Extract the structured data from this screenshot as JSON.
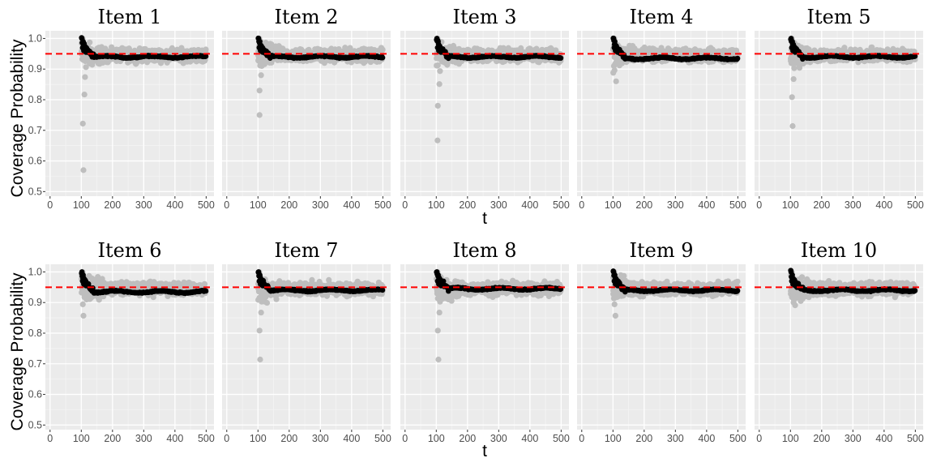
{
  "chart_data": {
    "type": "scatter",
    "layout": "facet-grid",
    "rows": 2,
    "cols": 5,
    "xlabel": "t",
    "ylabel": "Coverage Probability",
    "xlim": [
      -15,
      525
    ],
    "ylim": [
      0.485,
      1.025
    ],
    "x_ticks": [
      0,
      100,
      200,
      300,
      400,
      500
    ],
    "y_ticks": [
      0.5,
      0.6,
      0.7,
      0.8,
      0.9,
      1.0
    ],
    "y_tick_labels": [
      "0.5",
      "0.6",
      "0.7",
      "0.8",
      "0.9",
      "1.0"
    ],
    "reference_line": {
      "y": 0.95,
      "color": "#ff0000",
      "style": "dashed"
    },
    "grid": true,
    "panel_background": "#ebebeb",
    "series_colors": {
      "replicates": "#bebebe",
      "average": "#000000"
    },
    "panels": [
      {
        "title": "Item 1",
        "avg_start": 1.0,
        "avg_end": 0.94,
        "min_point": 0.57,
        "min_point_x": 107
      },
      {
        "title": "Item 2",
        "avg_start": 1.0,
        "avg_end": 0.94,
        "min_point": 0.75,
        "min_point_x": 105
      },
      {
        "title": "Item 3",
        "avg_start": 1.0,
        "avg_end": 0.94,
        "min_point": 0.667,
        "min_point_x": 104
      },
      {
        "title": "Item 4",
        "avg_start": 1.0,
        "avg_end": 0.935,
        "min_point": 0.86,
        "min_point_x": 110
      },
      {
        "title": "Item 5",
        "avg_start": 1.0,
        "avg_end": 0.94,
        "min_point": 0.714,
        "min_point_x": 107
      },
      {
        "title": "Item 6",
        "avg_start": 1.0,
        "avg_end": 0.935,
        "min_point": 0.857,
        "min_point_x": 107
      },
      {
        "title": "Item 7",
        "avg_start": 1.0,
        "avg_end": 0.94,
        "min_point": 0.714,
        "min_point_x": 107
      },
      {
        "title": "Item 8",
        "avg_start": 1.0,
        "avg_end": 0.945,
        "min_point": 0.714,
        "min_point_x": 107
      },
      {
        "title": "Item 9",
        "avg_start": 1.0,
        "avg_end": 0.94,
        "min_point": 0.857,
        "min_point_x": 108
      },
      {
        "title": "Item 10",
        "avg_start": 1.0,
        "avg_end": 0.94,
        "min_point": 0.9,
        "min_point_x": 110
      }
    ]
  }
}
